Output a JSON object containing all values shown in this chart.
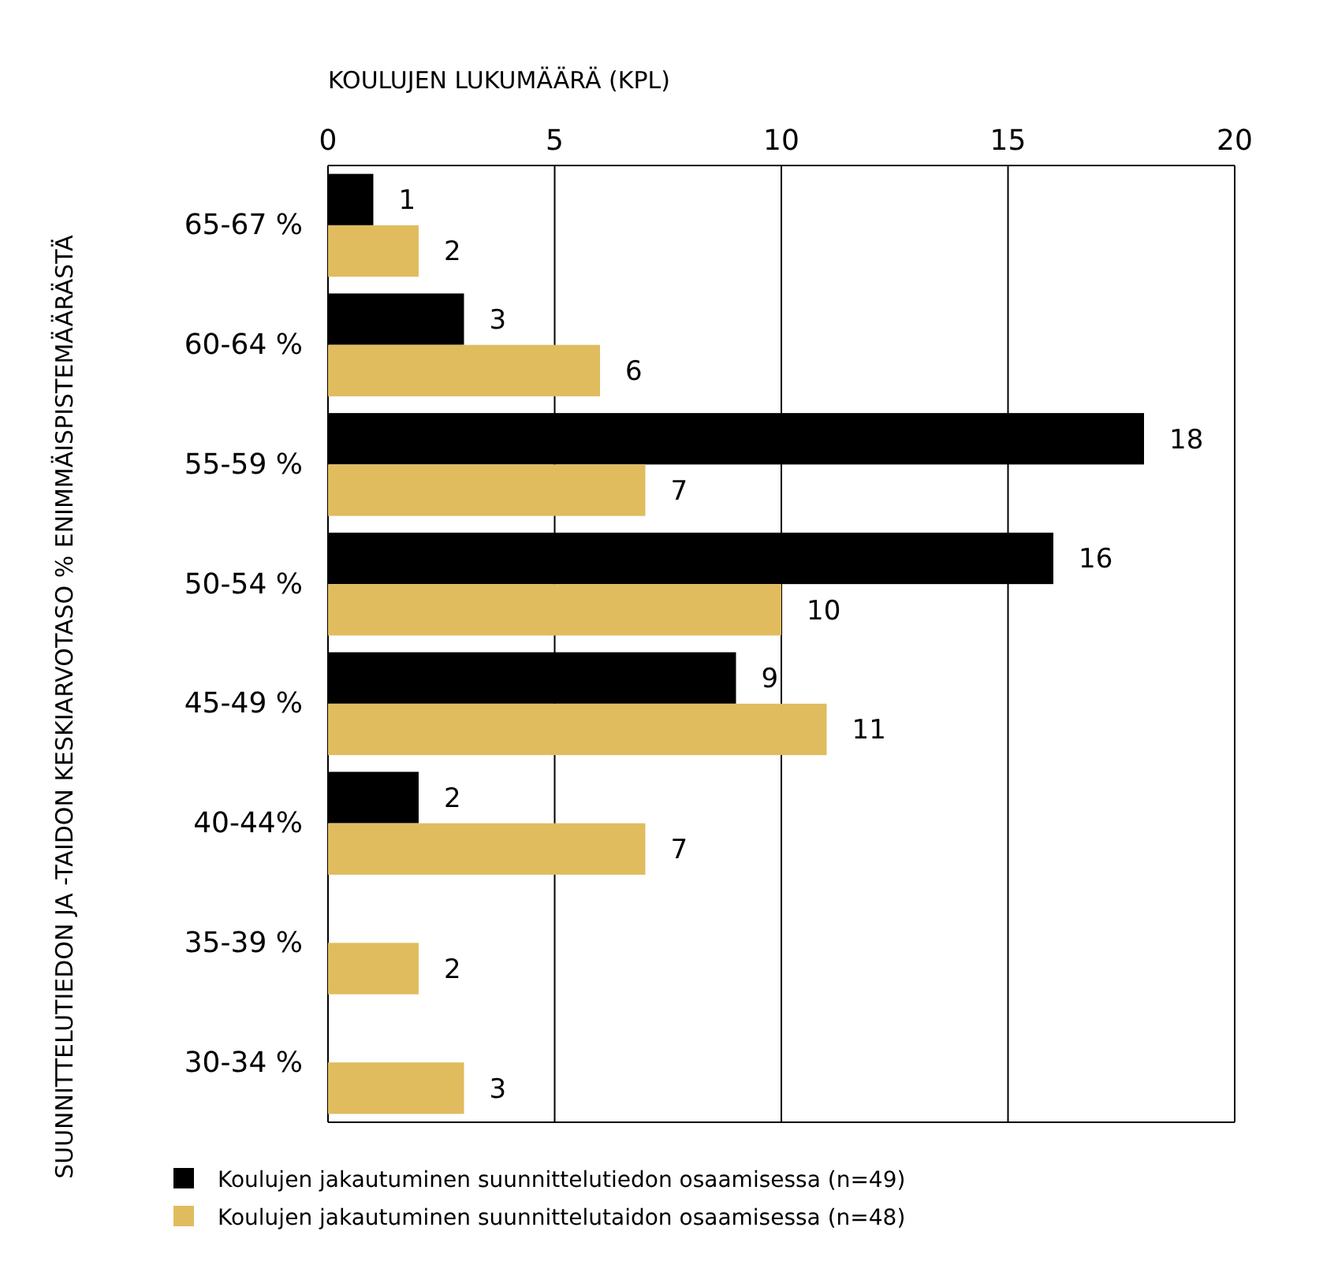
{
  "chart_data": {
    "type": "bar",
    "orientation": "horizontal",
    "xlabel": "KOULUJEN LUKUMÄÄRÄ (KPL)",
    "ylabel": "SUUNNITTELUTIEDON JA -TAIDON KESKIARVOTASO % ENIMMÄISPISTEMÄÄRÄSTÄ",
    "categories": [
      "65-67 %",
      "60-64 %",
      "55-59 %",
      "50-54 %",
      "45-49 %",
      "40-44%",
      "35-39 %",
      "30-34 %"
    ],
    "series": [
      {
        "name": "Koulujen jakautuminen suunnittelutiedon osaamisessa (n=49)",
        "color": "#000000",
        "values": [
          1,
          3,
          18,
          16,
          9,
          2,
          null,
          null
        ]
      },
      {
        "name": "Koulujen jakautuminen suunnittelutaidon osaamisessa (n=48)",
        "color": "#e0bc5f",
        "values": [
          2,
          6,
          7,
          10,
          11,
          7,
          2,
          3
        ]
      }
    ],
    "xlim": [
      0,
      20
    ],
    "xticks": [
      0,
      5,
      10,
      15,
      20
    ],
    "grid": "x",
    "legend": "bottom",
    "data_labels": true
  }
}
